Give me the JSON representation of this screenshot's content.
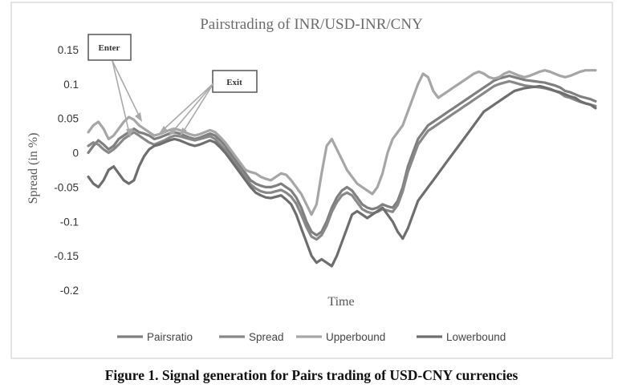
{
  "chart_data": {
    "type": "line",
    "title": "Pairstrading of INR/USD-INR/CNY",
    "xlabel": "Time",
    "ylabel": "Spread (in %)",
    "ylim": [
      -0.2,
      0.15
    ],
    "yticks": [
      0.15,
      0.1,
      0.05,
      0,
      -0.05,
      -0.1,
      -0.15,
      -0.2
    ],
    "ytick_labels": [
      "0.15",
      "0.1",
      "0.05",
      "0",
      "-0.05",
      "-0.1",
      "-0.15",
      "-0.2"
    ],
    "grid": false,
    "legend": "bottom",
    "x": [
      0,
      0.01,
      0.02,
      0.03,
      0.04,
      0.05,
      0.06,
      0.07,
      0.08,
      0.09,
      0.1,
      0.11,
      0.12,
      0.13,
      0.14,
      0.15,
      0.16,
      0.17,
      0.18,
      0.19,
      0.2,
      0.21,
      0.22,
      0.23,
      0.24,
      0.25,
      0.26,
      0.27,
      0.28,
      0.29,
      0.3,
      0.31,
      0.32,
      0.33,
      0.34,
      0.35,
      0.36,
      0.37,
      0.38,
      0.39,
      0.4,
      0.41,
      0.42,
      0.43,
      0.44,
      0.45,
      0.46,
      0.47,
      0.48,
      0.49,
      0.5,
      0.51,
      0.52,
      0.53,
      0.54,
      0.55,
      0.56,
      0.57,
      0.58,
      0.59,
      0.6,
      0.61,
      0.62,
      0.63,
      0.64,
      0.65,
      0.66,
      0.67,
      0.68,
      0.69,
      0.7,
      0.71,
      0.72,
      0.73,
      0.74,
      0.75,
      0.76,
      0.77,
      0.78,
      0.79,
      0.8,
      0.81,
      0.82,
      0.83,
      0.84,
      0.85,
      0.86,
      0.87,
      0.88,
      0.89,
      0.9,
      0.91,
      0.92,
      0.93,
      0.94,
      0.95,
      0.96,
      0.97,
      0.98,
      0.99,
      1
    ],
    "series": [
      {
        "name": "Pairsratio",
        "color": "#7f7f7f",
        "values": [
          0.0,
          0.01,
          0.018,
          0.012,
          0.005,
          0.01,
          0.02,
          0.025,
          0.03,
          0.035,
          0.03,
          0.028,
          0.025,
          0.02,
          0.022,
          0.025,
          0.028,
          0.03,
          0.028,
          0.025,
          0.022,
          0.02,
          0.022,
          0.025,
          0.028,
          0.025,
          0.018,
          0.01,
          0.0,
          -0.01,
          -0.02,
          -0.03,
          -0.04,
          -0.045,
          -0.048,
          -0.05,
          -0.05,
          -0.048,
          -0.045,
          -0.05,
          -0.055,
          -0.065,
          -0.08,
          -0.1,
          -0.115,
          -0.12,
          -0.115,
          -0.1,
          -0.08,
          -0.065,
          -0.055,
          -0.05,
          -0.055,
          -0.065,
          -0.075,
          -0.08,
          -0.082,
          -0.08,
          -0.075,
          -0.078,
          -0.08,
          -0.07,
          -0.05,
          -0.02,
          0.0,
          0.02,
          0.03,
          0.04,
          0.045,
          0.05,
          0.055,
          0.06,
          0.065,
          0.07,
          0.075,
          0.08,
          0.085,
          0.09,
          0.095,
          0.1,
          0.105,
          0.108,
          0.11,
          0.112,
          0.11,
          0.108,
          0.106,
          0.105,
          0.104,
          0.103,
          0.102,
          0.1,
          0.098,
          0.095,
          0.09,
          0.088,
          0.085,
          0.082,
          0.08,
          0.078,
          0.075
        ]
      },
      {
        "name": "Spread",
        "color": "#888888",
        "values": [
          0.01,
          0.015,
          0.012,
          0.005,
          0.0,
          0.005,
          0.012,
          0.02,
          0.025,
          0.03,
          0.025,
          0.02,
          0.015,
          0.012,
          0.015,
          0.018,
          0.022,
          0.025,
          0.024,
          0.022,
          0.02,
          0.018,
          0.02,
          0.022,
          0.024,
          0.02,
          0.012,
          0.004,
          -0.006,
          -0.016,
          -0.026,
          -0.036,
          -0.046,
          -0.052,
          -0.056,
          -0.058,
          -0.058,
          -0.056,
          -0.054,
          -0.058,
          -0.064,
          -0.074,
          -0.09,
          -0.108,
          -0.122,
          -0.126,
          -0.12,
          -0.106,
          -0.086,
          -0.072,
          -0.062,
          -0.058,
          -0.062,
          -0.072,
          -0.082,
          -0.086,
          -0.088,
          -0.086,
          -0.082,
          -0.084,
          -0.086,
          -0.076,
          -0.056,
          -0.028,
          -0.008,
          0.012,
          0.022,
          0.032,
          0.037,
          0.042,
          0.047,
          0.052,
          0.057,
          0.062,
          0.067,
          0.072,
          0.077,
          0.082,
          0.087,
          0.092,
          0.097,
          0.1,
          0.102,
          0.104,
          0.102,
          0.1,
          0.098,
          0.097,
          0.096,
          0.095,
          0.094,
          0.092,
          0.09,
          0.087,
          0.082,
          0.08,
          0.077,
          0.074,
          0.072,
          0.07,
          0.068
        ]
      },
      {
        "name": "Upperbound",
        "color": "#a6a6a6",
        "values": [
          0.03,
          0.04,
          0.045,
          0.035,
          0.02,
          0.025,
          0.035,
          0.045,
          0.052,
          0.048,
          0.04,
          0.035,
          0.03,
          0.025,
          0.027,
          0.03,
          0.033,
          0.035,
          0.033,
          0.03,
          0.027,
          0.025,
          0.027,
          0.03,
          0.033,
          0.03,
          0.023,
          0.015,
          0.005,
          -0.005,
          -0.015,
          -0.025,
          -0.028,
          -0.03,
          -0.035,
          -0.038,
          -0.04,
          -0.035,
          -0.03,
          -0.032,
          -0.04,
          -0.05,
          -0.06,
          -0.075,
          -0.09,
          -0.075,
          -0.03,
          0.01,
          0.02,
          0.005,
          -0.01,
          -0.025,
          -0.035,
          -0.045,
          -0.05,
          -0.055,
          -0.06,
          -0.05,
          -0.03,
          0.0,
          0.02,
          0.03,
          0.04,
          0.06,
          0.08,
          0.1,
          0.115,
          0.11,
          0.09,
          0.08,
          0.085,
          0.09,
          0.095,
          0.1,
          0.105,
          0.11,
          0.115,
          0.118,
          0.115,
          0.11,
          0.108,
          0.11,
          0.115,
          0.118,
          0.115,
          0.112,
          0.11,
          0.112,
          0.115,
          0.118,
          0.12,
          0.118,
          0.115,
          0.112,
          0.11,
          0.112,
          0.115,
          0.118,
          0.12,
          0.12,
          0.12
        ]
      },
      {
        "name": "Lowerbound",
        "color": "#6e6e6e",
        "values": [
          -0.035,
          -0.045,
          -0.05,
          -0.04,
          -0.025,
          -0.02,
          -0.03,
          -0.04,
          -0.045,
          -0.04,
          -0.02,
          -0.005,
          0.005,
          0.01,
          0.012,
          0.015,
          0.018,
          0.02,
          0.018,
          0.015,
          0.012,
          0.01,
          0.012,
          0.015,
          0.018,
          0.015,
          0.008,
          0.0,
          -0.01,
          -0.02,
          -0.03,
          -0.04,
          -0.05,
          -0.058,
          -0.062,
          -0.065,
          -0.066,
          -0.064,
          -0.062,
          -0.068,
          -0.075,
          -0.09,
          -0.11,
          -0.13,
          -0.15,
          -0.16,
          -0.155,
          -0.16,
          -0.165,
          -0.15,
          -0.13,
          -0.11,
          -0.09,
          -0.085,
          -0.09,
          -0.095,
          -0.09,
          -0.085,
          -0.08,
          -0.09,
          -0.1,
          -0.115,
          -0.125,
          -0.11,
          -0.09,
          -0.07,
          -0.06,
          -0.05,
          -0.04,
          -0.03,
          -0.02,
          -0.01,
          0.0,
          0.01,
          0.02,
          0.03,
          0.04,
          0.05,
          0.06,
          0.065,
          0.07,
          0.075,
          0.08,
          0.085,
          0.09,
          0.092,
          0.094,
          0.095,
          0.096,
          0.097,
          0.095,
          0.093,
          0.09,
          0.088,
          0.085,
          0.082,
          0.08,
          0.075,
          0.072,
          0.07,
          0.065
        ]
      }
    ],
    "annotations": [
      {
        "text": "Enter"
      },
      {
        "text": "Exit"
      }
    ]
  },
  "caption": "Figure 1. Signal generation for Pairs trading of USD-CNY currencies"
}
